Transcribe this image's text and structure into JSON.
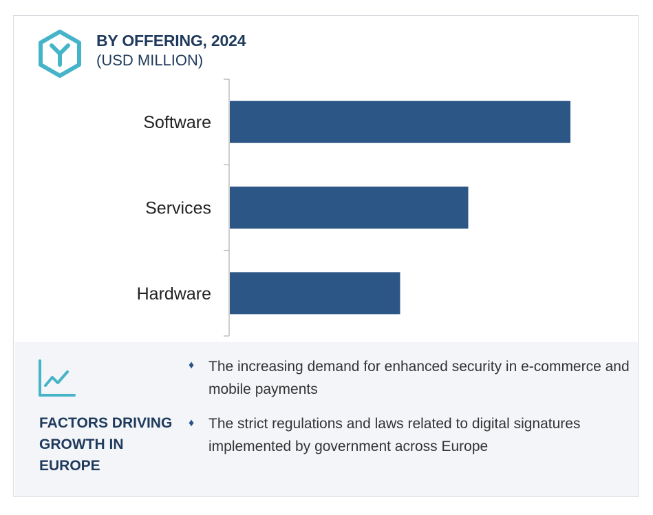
{
  "header": {
    "title": "BY OFFERING, 2024",
    "subtitle": "(USD MILLION)",
    "icon": "hexagon-y-logo-icon"
  },
  "colors": {
    "bar": "#2b5685",
    "title": "#1f3a5c",
    "icon": "#45b4c9",
    "footer_bg": "#f3f5f8"
  },
  "chart_data": {
    "type": "bar",
    "orientation": "horizontal",
    "categories": [
      "Software",
      "Services",
      "Hardware"
    ],
    "values": [
      100,
      70,
      50
    ],
    "values_note": "",
    "title": "BY OFFERING, 2024",
    "subtitle": "(USD MILLION)",
    "xlabel": "",
    "ylabel": "",
    "xlim": [
      0,
      100
    ],
    "grid": false,
    "legend": "none"
  },
  "factors": {
    "title": "FACTORS DRIVING GROWTH IN EUROPE",
    "bullet_glyph": "♦",
    "items": [
      "The increasing demand for enhanced security in e-commerce and mobile payments",
      "The strict regulations and laws related to digital signatures implemented by government across Europe"
    ]
  }
}
